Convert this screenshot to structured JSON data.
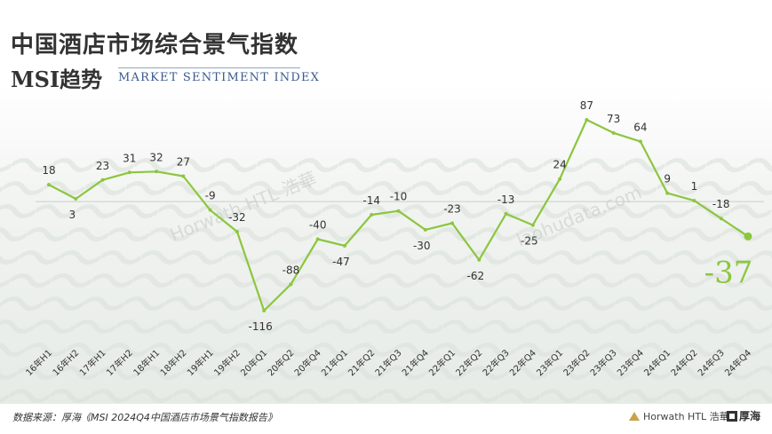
{
  "title_cn": "中国酒店市场综合景气指数",
  "title_msi": "MSI趋势",
  "title_en": "MARKET SENTIMENT INDEX",
  "source": "数据来源：厚海《MSI 2024Q4中国酒店市场景气指数报告》",
  "brand_horwath": "Horwath HTL 浩華",
  "brand_houhai": "厚海",
  "watermark_1": "Horwath HTL 浩華",
  "watermark_2": "laohudata.com",
  "colors": {
    "line": "#8cc63f",
    "zero_line": "#cccccc",
    "last_value": "#8cc63f",
    "label": "#333333"
  },
  "chart_data": {
    "type": "line",
    "title": "",
    "xlabel": "",
    "ylabel": "",
    "grid": false,
    "categories": [
      "16年H1",
      "16年H2",
      "17年H1",
      "17年H2",
      "18年H1",
      "18年H2",
      "19年H1",
      "19年H2",
      "20年Q1",
      "20年Q2",
      "20年Q4",
      "21年Q1",
      "21年Q2",
      "21年Q3",
      "21年Q4",
      "22年Q1",
      "22年Q2",
      "22年Q3",
      "22年Q4",
      "23年Q1",
      "23年Q2",
      "23年Q3",
      "23年Q4",
      "24年Q1",
      "24年Q2",
      "24年Q3",
      "24年Q4"
    ],
    "series": [
      {
        "values": [
          18,
          3,
          23,
          31,
          32,
          27,
          -9,
          -32,
          -116,
          -88,
          -40,
          -47,
          -14,
          -10,
          -30,
          -23,
          -62,
          -13,
          -25,
          24,
          87,
          73,
          64,
          9,
          1,
          -18,
          -37
        ],
        "labels": [
          "18",
          "3",
          "23",
          "31",
          "32",
          "27",
          "-9",
          "-32",
          "-116",
          "-88",
          "-40",
          "-47",
          "-14",
          "-10",
          "-30",
          "-23",
          "-62",
          "-13",
          "-25",
          "24",
          "87",
          "73",
          "64",
          "9",
          "1",
          "-18",
          "-37"
        ]
      }
    ],
    "ylim": [
      -130,
      100
    ],
    "zero_line": true,
    "highlight_last": true
  }
}
